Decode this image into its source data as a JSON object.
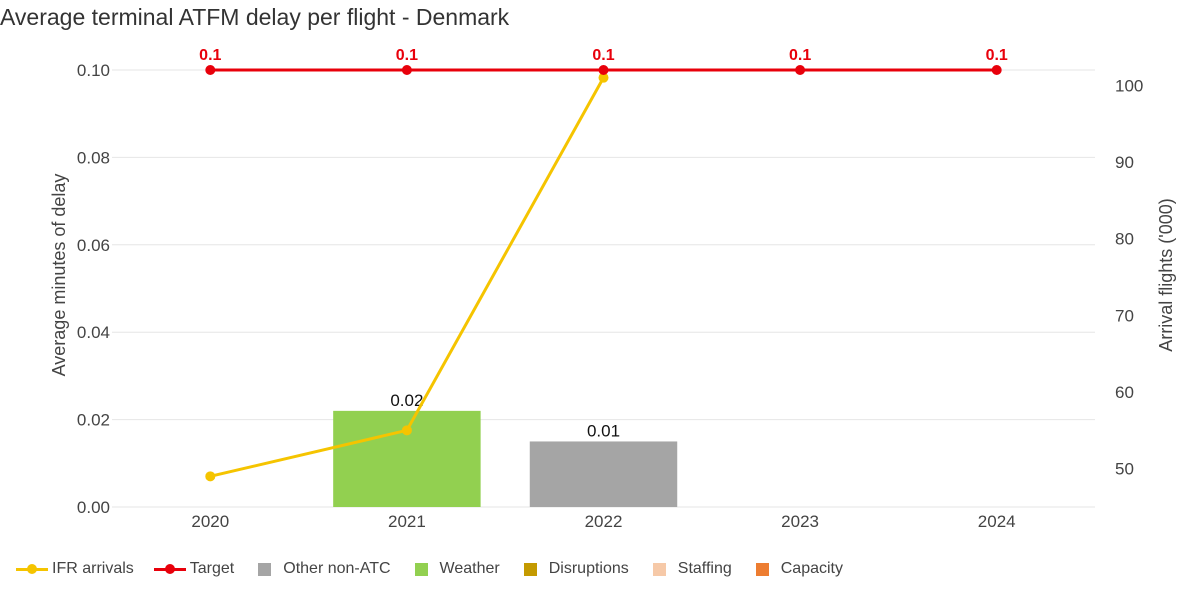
{
  "title": "Average terminal ATFM delay per flight - Denmark",
  "colors": {
    "ifr": "#f5c400",
    "target": "#e8000b",
    "other_non_atc": "#a5a5a5",
    "weather": "#92d050",
    "disruptions": "#c49a00",
    "staffing": "#f6c9a8",
    "capacity": "#ed7d31",
    "grid": "#e6e6e6"
  },
  "legend": [
    {
      "label": "IFR arrivals",
      "kind": "line",
      "color": "#f5c400"
    },
    {
      "label": "Target",
      "kind": "line",
      "color": "#e8000b"
    },
    {
      "label": "Other non-ATC",
      "kind": "box",
      "color": "#a5a5a5"
    },
    {
      "label": "Weather",
      "kind": "box",
      "color": "#92d050"
    },
    {
      "label": "Disruptions",
      "kind": "box",
      "color": "#c49a00"
    },
    {
      "label": "Staffing",
      "kind": "box",
      "color": "#f6c9a8"
    },
    {
      "label": "Capacity",
      "kind": "box",
      "color": "#ed7d31"
    }
  ],
  "chart_data": {
    "type": "bar",
    "categories": [
      "2020",
      "2021",
      "2022",
      "2023",
      "2024"
    ],
    "ylabel": "Average minutes of delay",
    "y2label": "Arrival flights ('000)",
    "ylim": [
      0,
      0.1
    ],
    "y2lim": [
      45,
      102
    ],
    "yticks": [
      "0.00",
      "0.02",
      "0.04",
      "0.06",
      "0.08",
      "0.10"
    ],
    "y2ticks": [
      "50",
      "60",
      "70",
      "80",
      "90",
      "100"
    ],
    "grid": "horizontal",
    "legend_position": "bottom",
    "stacked_series": [
      {
        "name": "Other non-ATC",
        "values": [
          0,
          0,
          0.015,
          0,
          0
        ]
      },
      {
        "name": "Weather",
        "values": [
          0,
          0.022,
          0,
          0,
          0
        ]
      },
      {
        "name": "Disruptions",
        "values": [
          0,
          0,
          0,
          0,
          0
        ]
      },
      {
        "name": "Staffing",
        "values": [
          0,
          0,
          0,
          0,
          0
        ]
      },
      {
        "name": "Capacity",
        "values": [
          0,
          0,
          0,
          0,
          0
        ]
      }
    ],
    "bar_labels": [
      "",
      "0.02",
      "0.01",
      "",
      ""
    ],
    "line_series": [
      {
        "name": "IFR arrivals",
        "axis": "right",
        "values": [
          49,
          55,
          101,
          null,
          null
        ]
      },
      {
        "name": "Target",
        "axis": "left",
        "values": [
          0.1,
          0.1,
          0.1,
          0.1,
          0.1
        ],
        "labels": [
          "0.1",
          "0.1",
          "0.1",
          "0.1",
          "0.1"
        ]
      }
    ]
  }
}
